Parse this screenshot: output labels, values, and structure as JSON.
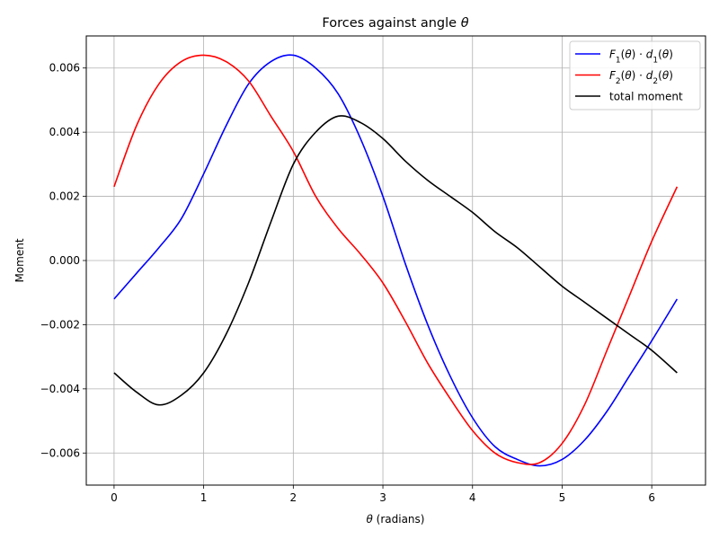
{
  "chart_data": {
    "type": "line",
    "title_prefix": "Forces against angle ",
    "title_symbol": "θ",
    "xlabel_symbol": "θ",
    "xlabel_suffix": " (radians)",
    "ylabel": "Moment",
    "xlim": [
      -0.31,
      6.6
    ],
    "ylim": [
      -0.007,
      0.007
    ],
    "xticks": [
      0,
      1,
      2,
      3,
      4,
      5,
      6
    ],
    "xtick_labels": [
      "0",
      "1",
      "2",
      "3",
      "4",
      "5",
      "6"
    ],
    "yticks": [
      -0.006,
      -0.004,
      -0.002,
      0.0,
      0.002,
      0.004,
      0.006
    ],
    "ytick_labels": [
      "−0.006",
      "−0.004",
      "−0.002",
      "0.000",
      "0.002",
      "0.004",
      "0.006"
    ],
    "grid": true,
    "legend_position": "top-right",
    "x": [
      0,
      0.25,
      0.5,
      0.75,
      1.0,
      1.25,
      1.5,
      1.75,
      2.0,
      2.25,
      2.5,
      2.75,
      3.0,
      3.25,
      3.5,
      3.75,
      4.0,
      4.25,
      4.5,
      4.75,
      5.0,
      5.25,
      5.5,
      5.75,
      6.0,
      6.283
    ],
    "series": [
      {
        "name_main": "F",
        "name_tail": "1(θ) · d1(θ)",
        "legend_parts": [
          [
            "F",
            "i"
          ],
          [
            "1",
            "sub"
          ],
          [
            "(",
            "n"
          ],
          [
            "θ",
            "i"
          ],
          [
            ") · ",
            "n"
          ],
          [
            "d",
            "i"
          ],
          [
            "1",
            "sub"
          ],
          [
            "(",
            "n"
          ],
          [
            "θ",
            "i"
          ],
          [
            ")",
            "n"
          ]
        ],
        "color": "#0000ff",
        "values": [
          -0.0012,
          -0.0004,
          0.0004,
          0.0013,
          0.0027,
          0.0042,
          0.0055,
          0.0062,
          0.0064,
          0.006,
          0.0052,
          0.0038,
          0.002,
          -0.0001,
          -0.002,
          -0.0036,
          -0.0049,
          -0.0058,
          -0.0062,
          -0.0064,
          -0.0062,
          -0.0056,
          -0.0047,
          -0.0036,
          -0.0025,
          -0.0012
        ]
      },
      {
        "name_main": "F",
        "name_tail": "2(θ) · d2(θ)",
        "legend_parts": [
          [
            "F",
            "i"
          ],
          [
            "2",
            "sub"
          ],
          [
            "(",
            "n"
          ],
          [
            "θ",
            "i"
          ],
          [
            ") · ",
            "n"
          ],
          [
            "d",
            "i"
          ],
          [
            "2",
            "sub"
          ],
          [
            "(",
            "n"
          ],
          [
            "θ",
            "i"
          ],
          [
            ")",
            "n"
          ]
        ],
        "color": "#ff0000",
        "values": [
          0.0023,
          0.0042,
          0.0055,
          0.0062,
          0.0064,
          0.0062,
          0.0056,
          0.0045,
          0.0034,
          0.002,
          0.001,
          0.0002,
          -0.0007,
          -0.0019,
          -0.0032,
          -0.0043,
          -0.0053,
          -0.006,
          -0.0063,
          -0.0063,
          -0.0057,
          -0.0045,
          -0.0028,
          -0.0011,
          0.0006,
          0.0023
        ]
      },
      {
        "name_main": "total moment",
        "legend_parts": [
          [
            "total moment",
            "n"
          ]
        ],
        "color": "#000000",
        "values": [
          -0.0035,
          -0.0041,
          -0.0045,
          -0.0042,
          -0.0035,
          -0.0023,
          -0.0007,
          0.0012,
          0.003,
          0.004,
          0.0045,
          0.0043,
          0.0038,
          0.0031,
          0.0025,
          0.002,
          0.0015,
          0.0009,
          0.0004,
          -0.0002,
          -0.0008,
          -0.0013,
          -0.0018,
          -0.0023,
          -0.0028,
          -0.0035
        ]
      }
    ]
  }
}
